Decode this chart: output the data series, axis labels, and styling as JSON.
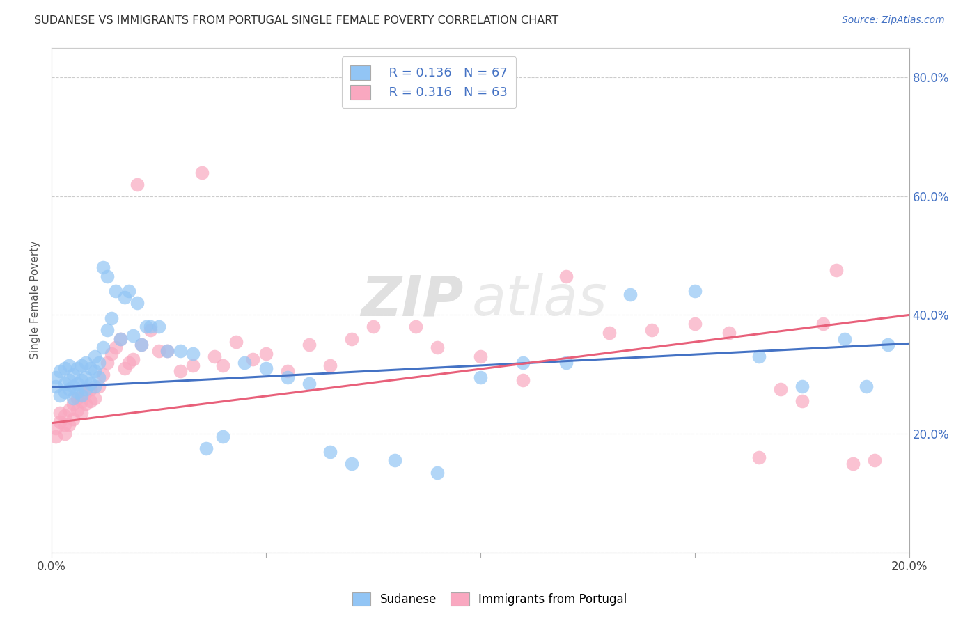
{
  "title": "SUDANESE VS IMMIGRANTS FROM PORTUGAL SINGLE FEMALE POVERTY CORRELATION CHART",
  "source": "Source: ZipAtlas.com",
  "ylabel": "Single Female Poverty",
  "xlim": [
    0.0,
    0.2
  ],
  "ylim": [
    0.0,
    0.85
  ],
  "xticks": [
    0.0,
    0.05,
    0.1,
    0.15,
    0.2
  ],
  "yticks": [
    0.0,
    0.2,
    0.4,
    0.6,
    0.8
  ],
  "ytick_labels_right": [
    "",
    "20.0%",
    "40.0%",
    "60.0%",
    "80.0%"
  ],
  "xtick_labels": [
    "0.0%",
    "",
    "",
    "",
    "20.0%"
  ],
  "blue_R": 0.136,
  "blue_N": 67,
  "pink_R": 0.316,
  "pink_N": 63,
  "blue_color": "#92C5F5",
  "pink_color": "#F9A8C0",
  "blue_line_color": "#4472C4",
  "pink_line_color": "#E8607A",
  "legend_label_blue": "Sudanese",
  "legend_label_pink": "Immigrants from Portugal",
  "watermark_zip": "ZIP",
  "watermark_atlas": "atlas",
  "blue_x": [
    0.001,
    0.001,
    0.002,
    0.002,
    0.003,
    0.003,
    0.003,
    0.004,
    0.004,
    0.004,
    0.005,
    0.005,
    0.005,
    0.006,
    0.006,
    0.006,
    0.007,
    0.007,
    0.007,
    0.008,
    0.008,
    0.008,
    0.009,
    0.009,
    0.01,
    0.01,
    0.01,
    0.011,
    0.011,
    0.012,
    0.012,
    0.013,
    0.013,
    0.014,
    0.015,
    0.016,
    0.017,
    0.018,
    0.019,
    0.02,
    0.021,
    0.022,
    0.023,
    0.025,
    0.027,
    0.03,
    0.033,
    0.036,
    0.04,
    0.045,
    0.05,
    0.055,
    0.06,
    0.065,
    0.07,
    0.08,
    0.09,
    0.1,
    0.11,
    0.12,
    0.135,
    0.15,
    0.165,
    0.175,
    0.185,
    0.19,
    0.195
  ],
  "blue_y": [
    0.28,
    0.295,
    0.265,
    0.305,
    0.27,
    0.285,
    0.31,
    0.275,
    0.29,
    0.315,
    0.26,
    0.28,
    0.3,
    0.27,
    0.285,
    0.31,
    0.265,
    0.29,
    0.315,
    0.275,
    0.295,
    0.32,
    0.285,
    0.31,
    0.28,
    0.305,
    0.33,
    0.295,
    0.32,
    0.48,
    0.345,
    0.465,
    0.375,
    0.395,
    0.44,
    0.36,
    0.43,
    0.44,
    0.365,
    0.42,
    0.35,
    0.38,
    0.38,
    0.38,
    0.34,
    0.34,
    0.335,
    0.175,
    0.195,
    0.32,
    0.31,
    0.295,
    0.285,
    0.17,
    0.15,
    0.155,
    0.135,
    0.295,
    0.32,
    0.32,
    0.435,
    0.44,
    0.33,
    0.28,
    0.36,
    0.28,
    0.35
  ],
  "pink_x": [
    0.001,
    0.001,
    0.002,
    0.002,
    0.003,
    0.003,
    0.003,
    0.004,
    0.004,
    0.005,
    0.005,
    0.006,
    0.006,
    0.007,
    0.007,
    0.008,
    0.008,
    0.009,
    0.009,
    0.01,
    0.011,
    0.012,
    0.013,
    0.014,
    0.015,
    0.016,
    0.017,
    0.018,
    0.019,
    0.02,
    0.021,
    0.023,
    0.025,
    0.027,
    0.03,
    0.033,
    0.035,
    0.038,
    0.04,
    0.043,
    0.047,
    0.05,
    0.055,
    0.06,
    0.065,
    0.07,
    0.075,
    0.085,
    0.09,
    0.1,
    0.11,
    0.12,
    0.13,
    0.14,
    0.15,
    0.158,
    0.165,
    0.17,
    0.175,
    0.18,
    0.183,
    0.187,
    0.192
  ],
  "pink_y": [
    0.195,
    0.21,
    0.22,
    0.235,
    0.2,
    0.215,
    0.23,
    0.215,
    0.24,
    0.225,
    0.25,
    0.24,
    0.26,
    0.235,
    0.255,
    0.25,
    0.27,
    0.255,
    0.275,
    0.26,
    0.28,
    0.3,
    0.32,
    0.335,
    0.345,
    0.36,
    0.31,
    0.32,
    0.325,
    0.62,
    0.35,
    0.375,
    0.34,
    0.34,
    0.305,
    0.315,
    0.64,
    0.33,
    0.315,
    0.355,
    0.325,
    0.335,
    0.305,
    0.35,
    0.315,
    0.36,
    0.38,
    0.38,
    0.345,
    0.33,
    0.29,
    0.465,
    0.37,
    0.375,
    0.385,
    0.37,
    0.16,
    0.275,
    0.255,
    0.385,
    0.475,
    0.15,
    0.155
  ],
  "blue_line_x0": 0.0,
  "blue_line_y0": 0.278,
  "blue_line_x1": 0.2,
  "blue_line_y1": 0.352,
  "pink_line_x0": 0.0,
  "pink_line_y0": 0.218,
  "pink_line_x1": 0.2,
  "pink_line_y1": 0.4
}
